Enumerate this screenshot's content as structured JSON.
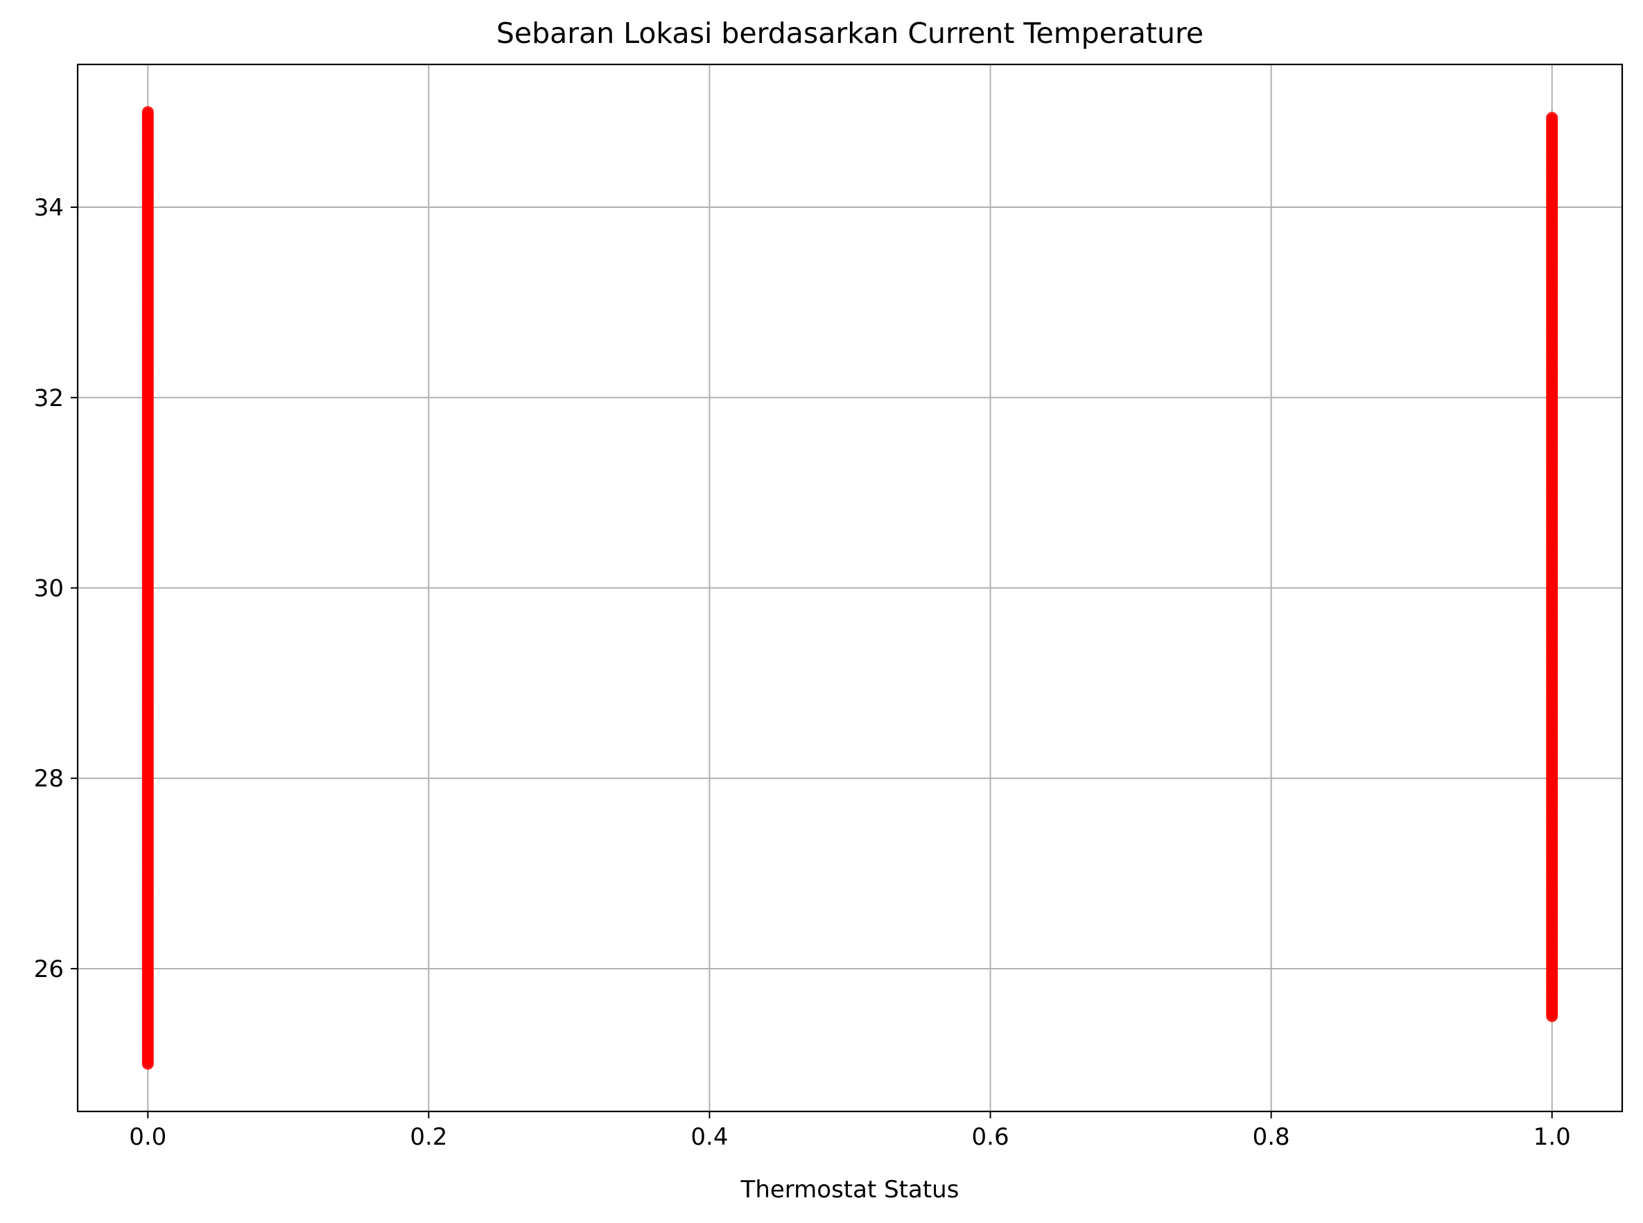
{
  "chart_data": {
    "type": "scatter",
    "title": "Sebaran Lokasi berdasarkan Current Temperature",
    "xlabel": "Thermostat Status",
    "ylabel": "",
    "xlim": [
      -0.05,
      1.05
    ],
    "ylim": [
      24.5,
      35.5
    ],
    "x_ticks": [
      "0.0",
      "0.2",
      "0.4",
      "0.6",
      "0.8",
      "1.0"
    ],
    "y_ticks": [
      "26",
      "28",
      "30",
      "32",
      "34"
    ],
    "grid": true,
    "legend": "none",
    "marker_color": "#ff0000",
    "series": [
      {
        "x": 0,
        "y_min": 25.0,
        "y_max": 35.0
      },
      {
        "x": 1,
        "y_min": 25.5,
        "y_max": 34.95
      }
    ]
  }
}
